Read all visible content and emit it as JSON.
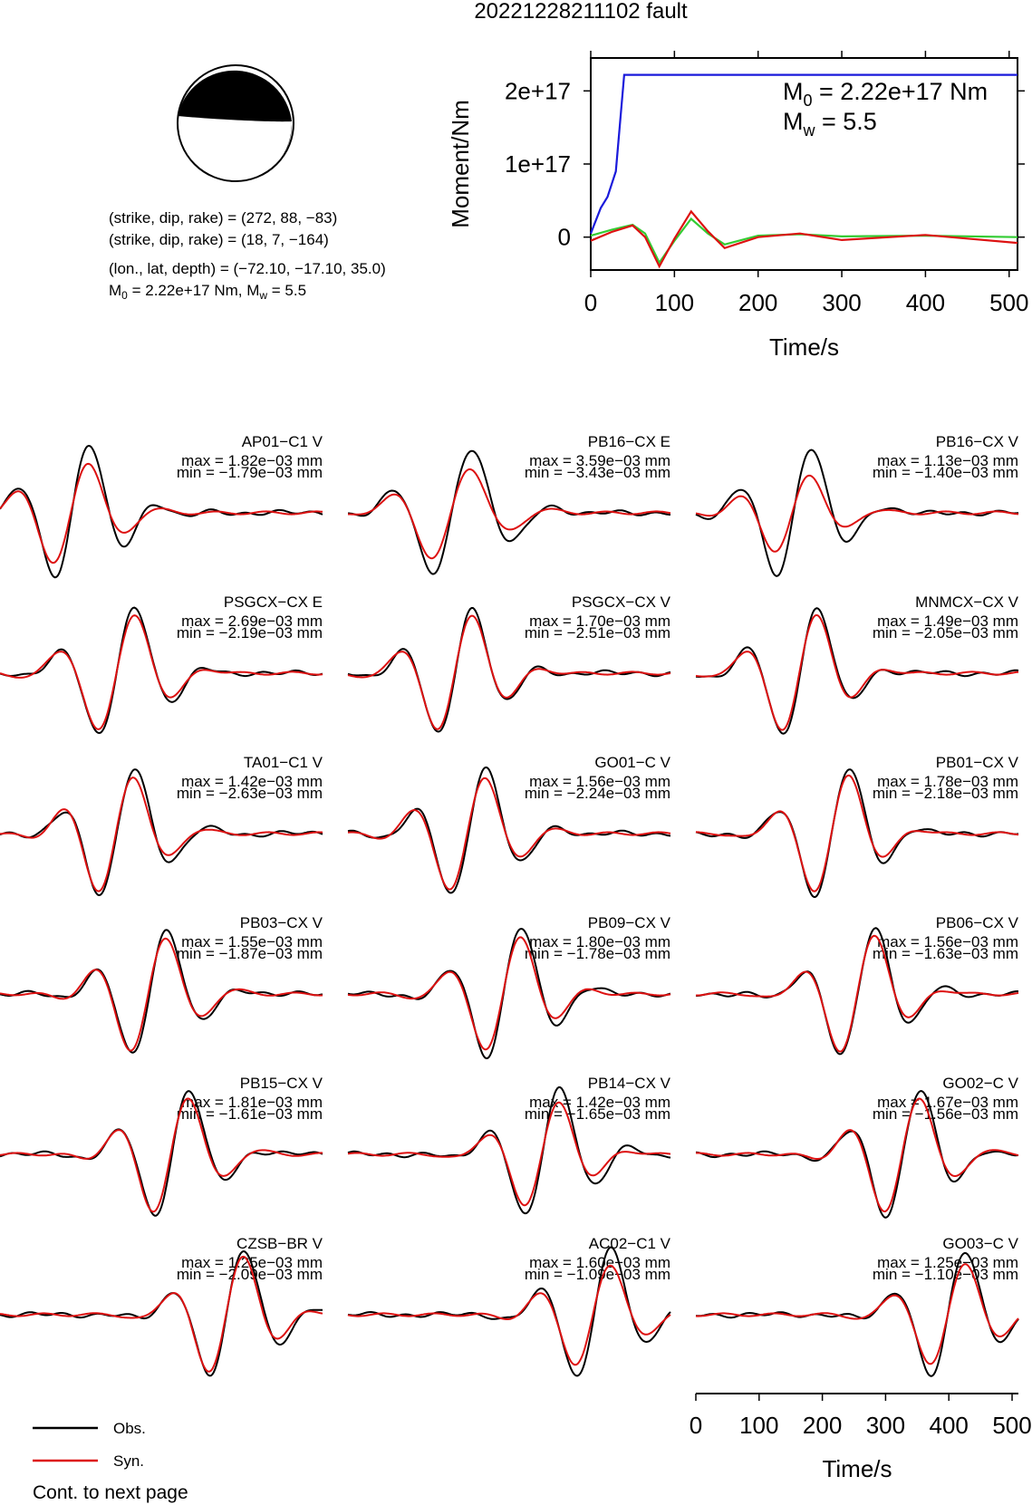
{
  "title": "20221228211102 fault",
  "mechanism": {
    "plane1": "(strike, dip, rake) = (272, 88, −83)",
    "plane2": "(strike, dip, rake) = (18, 7, −164)",
    "location": "(lon., lat, depth) = (−72.10, −17.10, 35.0)",
    "moment_pre": "M",
    "moment_sub0": "0",
    "moment_mid": " = 2.22e+17 Nm, M",
    "moment_subw": "w",
    "moment_post": " = 5.5"
  },
  "moment_panel": {
    "m0_pre": "M",
    "m0_sub": "0",
    "m0_post": " = 2.22e+17 Nm",
    "mw_pre": "M",
    "mw_sub": "w",
    "mw_post": " = 5.5"
  },
  "chart_data": [
    {
      "type": "line",
      "ylabel": "Moment/Nm",
      "xlabel": "Time/s",
      "xlim": [
        0,
        510
      ],
      "ylim": [
        -4.5e+16,
        2.45e+17
      ],
      "xticks": [
        0,
        100,
        200,
        300,
        400,
        500
      ],
      "yticks": [
        {
          "v": 0,
          "label": "0"
        },
        {
          "v": 1e+17,
          "label": "1e+17"
        },
        {
          "v": 2e+17,
          "label": "2e+17"
        }
      ],
      "series": [
        {
          "color": "#1a1adb",
          "x": [
            0,
            12,
            20,
            30,
            40,
            510
          ],
          "y": [
            5000000000000000.0,
            4e+16,
            5.5e+16,
            9e+16,
            2.22e+17,
            2.22e+17
          ]
        },
        {
          "color": "#33cc33",
          "x": [
            0,
            25,
            50,
            65,
            82,
            100,
            120,
            140,
            160,
            200,
            250,
            300,
            400,
            510
          ],
          "y": [
            2000000000000000.0,
            1e+16,
            1.7e+16,
            5000000000000000.0,
            -3.5e+16,
            -5000000000000000.0,
            2.5e+16,
            5000000000000000.0,
            -1e+16,
            2000000000000000.0,
            4000000000000000.0,
            1000000000000000.0,
            2000000000000000.0,
            0.0
          ]
        },
        {
          "color": "#dd1111",
          "x": [
            0,
            25,
            50,
            65,
            82,
            100,
            120,
            140,
            160,
            200,
            250,
            300,
            400,
            450,
            510
          ],
          "y": [
            -5000000000000000.0,
            7000000000000000.0,
            1.6e+16,
            0.0,
            -4e+16,
            -2000000000000000.0,
            3.5e+16,
            8000000000000000.0,
            -1.5e+16,
            0.0,
            5000000000000000.0,
            -4000000000000000.0,
            3000000000000000.0,
            -2000000000000000.0,
            -8000000000000000.0
          ]
        }
      ]
    },
    {
      "type": "line",
      "description_axis": "waveform time axis",
      "xlabel": "Time/s",
      "xlim": [
        0,
        510
      ],
      "xticks": [
        0,
        100,
        200,
        300,
        400,
        500
      ],
      "legend": [
        {
          "label": "Obs.",
          "color": "#000000"
        },
        {
          "label": "Syn.",
          "color": "#dd1111"
        }
      ],
      "stations": [
        {
          "name": "AP01−C1 V",
          "max": "max = 1.82e−03 mm",
          "min": "min = −1.79e−03 mm",
          "t0": 0.22,
          "f": 1.0,
          "d": 0.05,
          "a": 0.8,
          "tail": 0.6
        },
        {
          "name": "PB16−CX E",
          "max": "max = 3.59e−03 mm",
          "min": "min = −3.43e−03 mm",
          "t0": 0.32,
          "f": 0.9,
          "d": 0.03,
          "a": 0.7,
          "tail": 0.3
        },
        {
          "name": "PB16−CX V",
          "max": "max = 1.13e−03 mm",
          "min": "min = −1.40e−03 mm",
          "t0": 0.3,
          "f": 1.0,
          "d": 0.03,
          "a": 0.6,
          "tail": 0.2
        },
        {
          "name": "PSGCX−CX E",
          "max": "max = 2.69e−03 mm",
          "min": "min = −2.19e−03 mm",
          "t0": 0.36,
          "f": 0.95,
          "d": 0.02,
          "a": 0.9,
          "tail": 0.2
        },
        {
          "name": "PSGCX−CX V",
          "max": "max = 1.70e−03 mm",
          "min": "min = −2.51e−03 mm",
          "t0": 0.33,
          "f": 1.0,
          "d": 0.02,
          "a": 0.9,
          "tail": 0.2
        },
        {
          "name": "MNMCX−CX V",
          "max": "max = 1.49e−03 mm",
          "min": "min = −2.05e−03 mm",
          "t0": 0.32,
          "f": 1.0,
          "d": 0.02,
          "a": 0.9,
          "tail": 0.2
        },
        {
          "name": "TA01−C1 V",
          "max": "max = 1.42e−03 mm",
          "min": "min = −2.63e−03 mm",
          "t0": 0.36,
          "f": 1.0,
          "d": 0.02,
          "a": 0.9,
          "tail": 0.25
        },
        {
          "name": "GO01−C V",
          "max": "max = 1.56e−03 mm",
          "min": "min = −2.24e−03 mm",
          "t0": 0.37,
          "f": 1.0,
          "d": 0.03,
          "a": 0.9,
          "tail": 0.2
        },
        {
          "name": "PB01−CX V",
          "max": "max = 1.78e−03 mm",
          "min": "min = −2.18e−03 mm",
          "t0": 0.42,
          "f": 1.0,
          "d": 0.03,
          "a": 0.9,
          "tail": 0.2
        },
        {
          "name": "PB03−CX V",
          "max": "max = 1.55e−03 mm",
          "min": "min = −1.87e−03 mm",
          "t0": 0.46,
          "f": 1.0,
          "d": 0.02,
          "a": 0.9,
          "tail": 0.2
        },
        {
          "name": "PB09−CX V",
          "max": "max = 1.80e−03 mm",
          "min": "min = −1.78e−03 mm",
          "t0": 0.48,
          "f": 1.0,
          "d": 0.02,
          "a": 0.9,
          "tail": 0.2
        },
        {
          "name": "PB06−CX V",
          "max": "max = 1.56e−03 mm",
          "min": "min = −1.63e−03 mm",
          "t0": 0.5,
          "f": 1.0,
          "d": 0.03,
          "a": 0.9,
          "tail": 0.2
        },
        {
          "name": "PB15−CX V",
          "max": "max = 1.81e−03 mm",
          "min": "min = −1.61e−03 mm",
          "t0": 0.53,
          "f": 1.0,
          "d": 0.03,
          "a": 0.9,
          "tail": 0.2
        },
        {
          "name": "PB14−CX V",
          "max": "max = 1.42e−03 mm",
          "min": "min = −1.65e−03 mm",
          "t0": 0.6,
          "f": 1.0,
          "d": 0.04,
          "a": 0.8,
          "tail": 0.2
        },
        {
          "name": "GO02−C V",
          "max": "max = 1.67e−03 mm",
          "min": "min = −1.56e−03 mm",
          "t0": 0.64,
          "f": 1.0,
          "d": 0.03,
          "a": 0.9,
          "tail": 0.2
        },
        {
          "name": "CZSB−BR V",
          "max": "max = 1.25e−03 mm",
          "min": "min = −2.09e−03 mm",
          "t0": 0.7,
          "f": 1.0,
          "d": 0.04,
          "a": 0.9,
          "tail": 0.2
        },
        {
          "name": "AC02−C1 V",
          "max": "max = 1.60e−03 mm",
          "min": "min = −1.09e−03 mm",
          "t0": 0.76,
          "f": 1.0,
          "d": 0.04,
          "a": 0.8,
          "tail": 0.3
        },
        {
          "name": "GO03−C V",
          "max": "max = 1.25e−03 mm",
          "min": "min = −1.10e−03 mm",
          "t0": 0.78,
          "f": 1.0,
          "d": 0.04,
          "a": 0.8,
          "tail": 0.3
        }
      ]
    }
  ],
  "footer": "Cont. to next page"
}
